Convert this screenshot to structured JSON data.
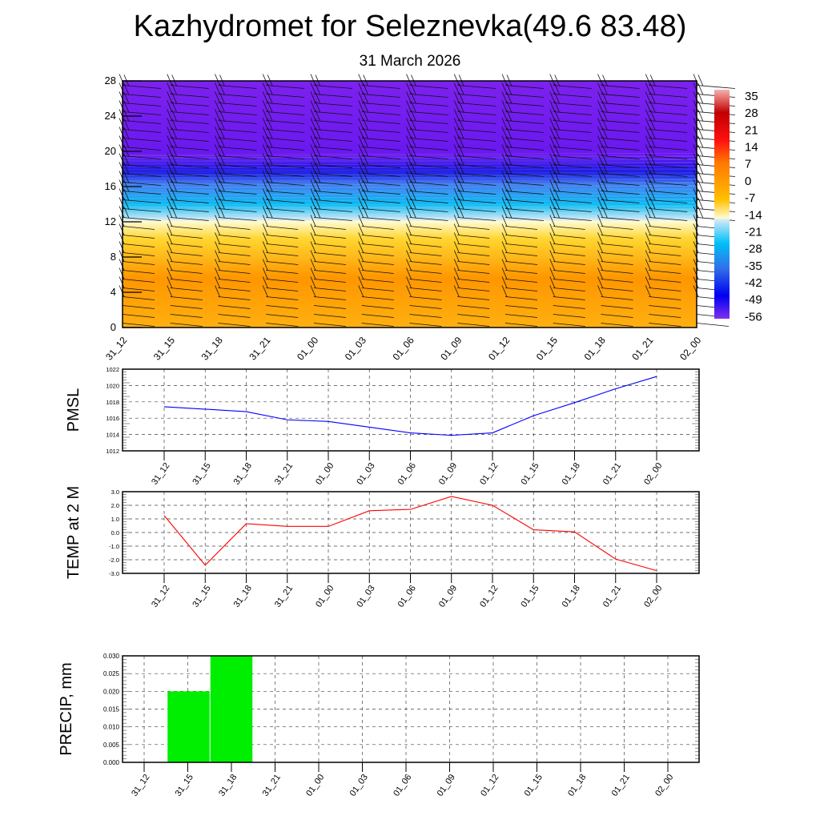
{
  "title": "Kazhydromet for Seleznevka(49.6 83.48)",
  "subtitle": "31 March 2026",
  "chart_data": [
    {
      "type": "heatmap",
      "name": "temperature-wind-cross-section",
      "x_tick_labels": [
        "31_12",
        "31_15",
        "31_18",
        "31_21",
        "01_00",
        "01_03",
        "01_06",
        "01_09",
        "01_12",
        "01_15",
        "01_18",
        "01_21",
        "02_00"
      ],
      "y_ticks": [
        0,
        4,
        8,
        12,
        16,
        20,
        24,
        28
      ],
      "ylim": [
        0,
        28
      ],
      "colorbar_labels": [
        "35",
        "28",
        "21",
        "14",
        "7",
        "0",
        "-7",
        "-14",
        "-21",
        "-28",
        "-35",
        "-42",
        "-49",
        "-56"
      ],
      "colorbar_range": [
        -60,
        38
      ],
      "colors": {
        "warm": "#ff9a00",
        "cold": "#7a1ff0",
        "jet": "#1010e0",
        "cyan": "#00b8f0"
      }
    },
    {
      "type": "line",
      "name": "pmsl",
      "ylabel": "PMSL",
      "categories": [
        "31_12",
        "31_15",
        "31_18",
        "31_21",
        "01_00",
        "01_03",
        "01_06",
        "01_09",
        "01_12",
        "01_15",
        "01_18",
        "01_21",
        "02_00"
      ],
      "values": [
        1017.4,
        1017.1,
        1016.8,
        1015.8,
        1015.6,
        1014.9,
        1014.2,
        1013.9,
        1014.2,
        1016.3,
        1017.9,
        1019.6,
        1021.1
      ],
      "ylim": [
        1012,
        1022
      ],
      "y_ticks": [
        "1012",
        "1014",
        "1016",
        "1018",
        "1020",
        "1022"
      ],
      "color": "#0000ff",
      "grid": true
    },
    {
      "type": "line",
      "name": "temp-2m",
      "ylabel": "TEMP at 2 M",
      "categories": [
        "31_12",
        "31_15",
        "31_18",
        "31_21",
        "01_00",
        "01_03",
        "01_06",
        "01_09",
        "01_12",
        "01_15",
        "01_18",
        "01_21",
        "02_00"
      ],
      "values": [
        1.25,
        -2.4,
        0.65,
        0.45,
        0.45,
        1.6,
        1.7,
        2.65,
        2.0,
        0.2,
        0.05,
        -1.95,
        -2.8
      ],
      "ylim": [
        -3,
        3
      ],
      "y_ticks": [
        "-3.0",
        "-2.0",
        "-1.0",
        "0.0",
        "1.0",
        "2.0",
        "3.0"
      ],
      "color": "#ff0000",
      "grid": true
    },
    {
      "type": "bar",
      "name": "precip",
      "ylabel": "PRECIP, mm",
      "categories": [
        "31_12",
        "31_15",
        "31_18",
        "31_21",
        "01_00",
        "01_03",
        "01_06",
        "01_09",
        "01_12",
        "01_15",
        "01_18",
        "01_21",
        "02_00"
      ],
      "values": [
        0,
        0.02,
        0.03,
        0,
        0,
        0,
        0,
        0,
        0,
        0,
        0,
        0,
        0
      ],
      "ylim": [
        0,
        0.03
      ],
      "y_ticks": [
        "0.000",
        "0.005",
        "0.010",
        "0.015",
        "0.020",
        "0.025",
        "0.030"
      ],
      "color": "#00ee00",
      "grid": true
    }
  ]
}
